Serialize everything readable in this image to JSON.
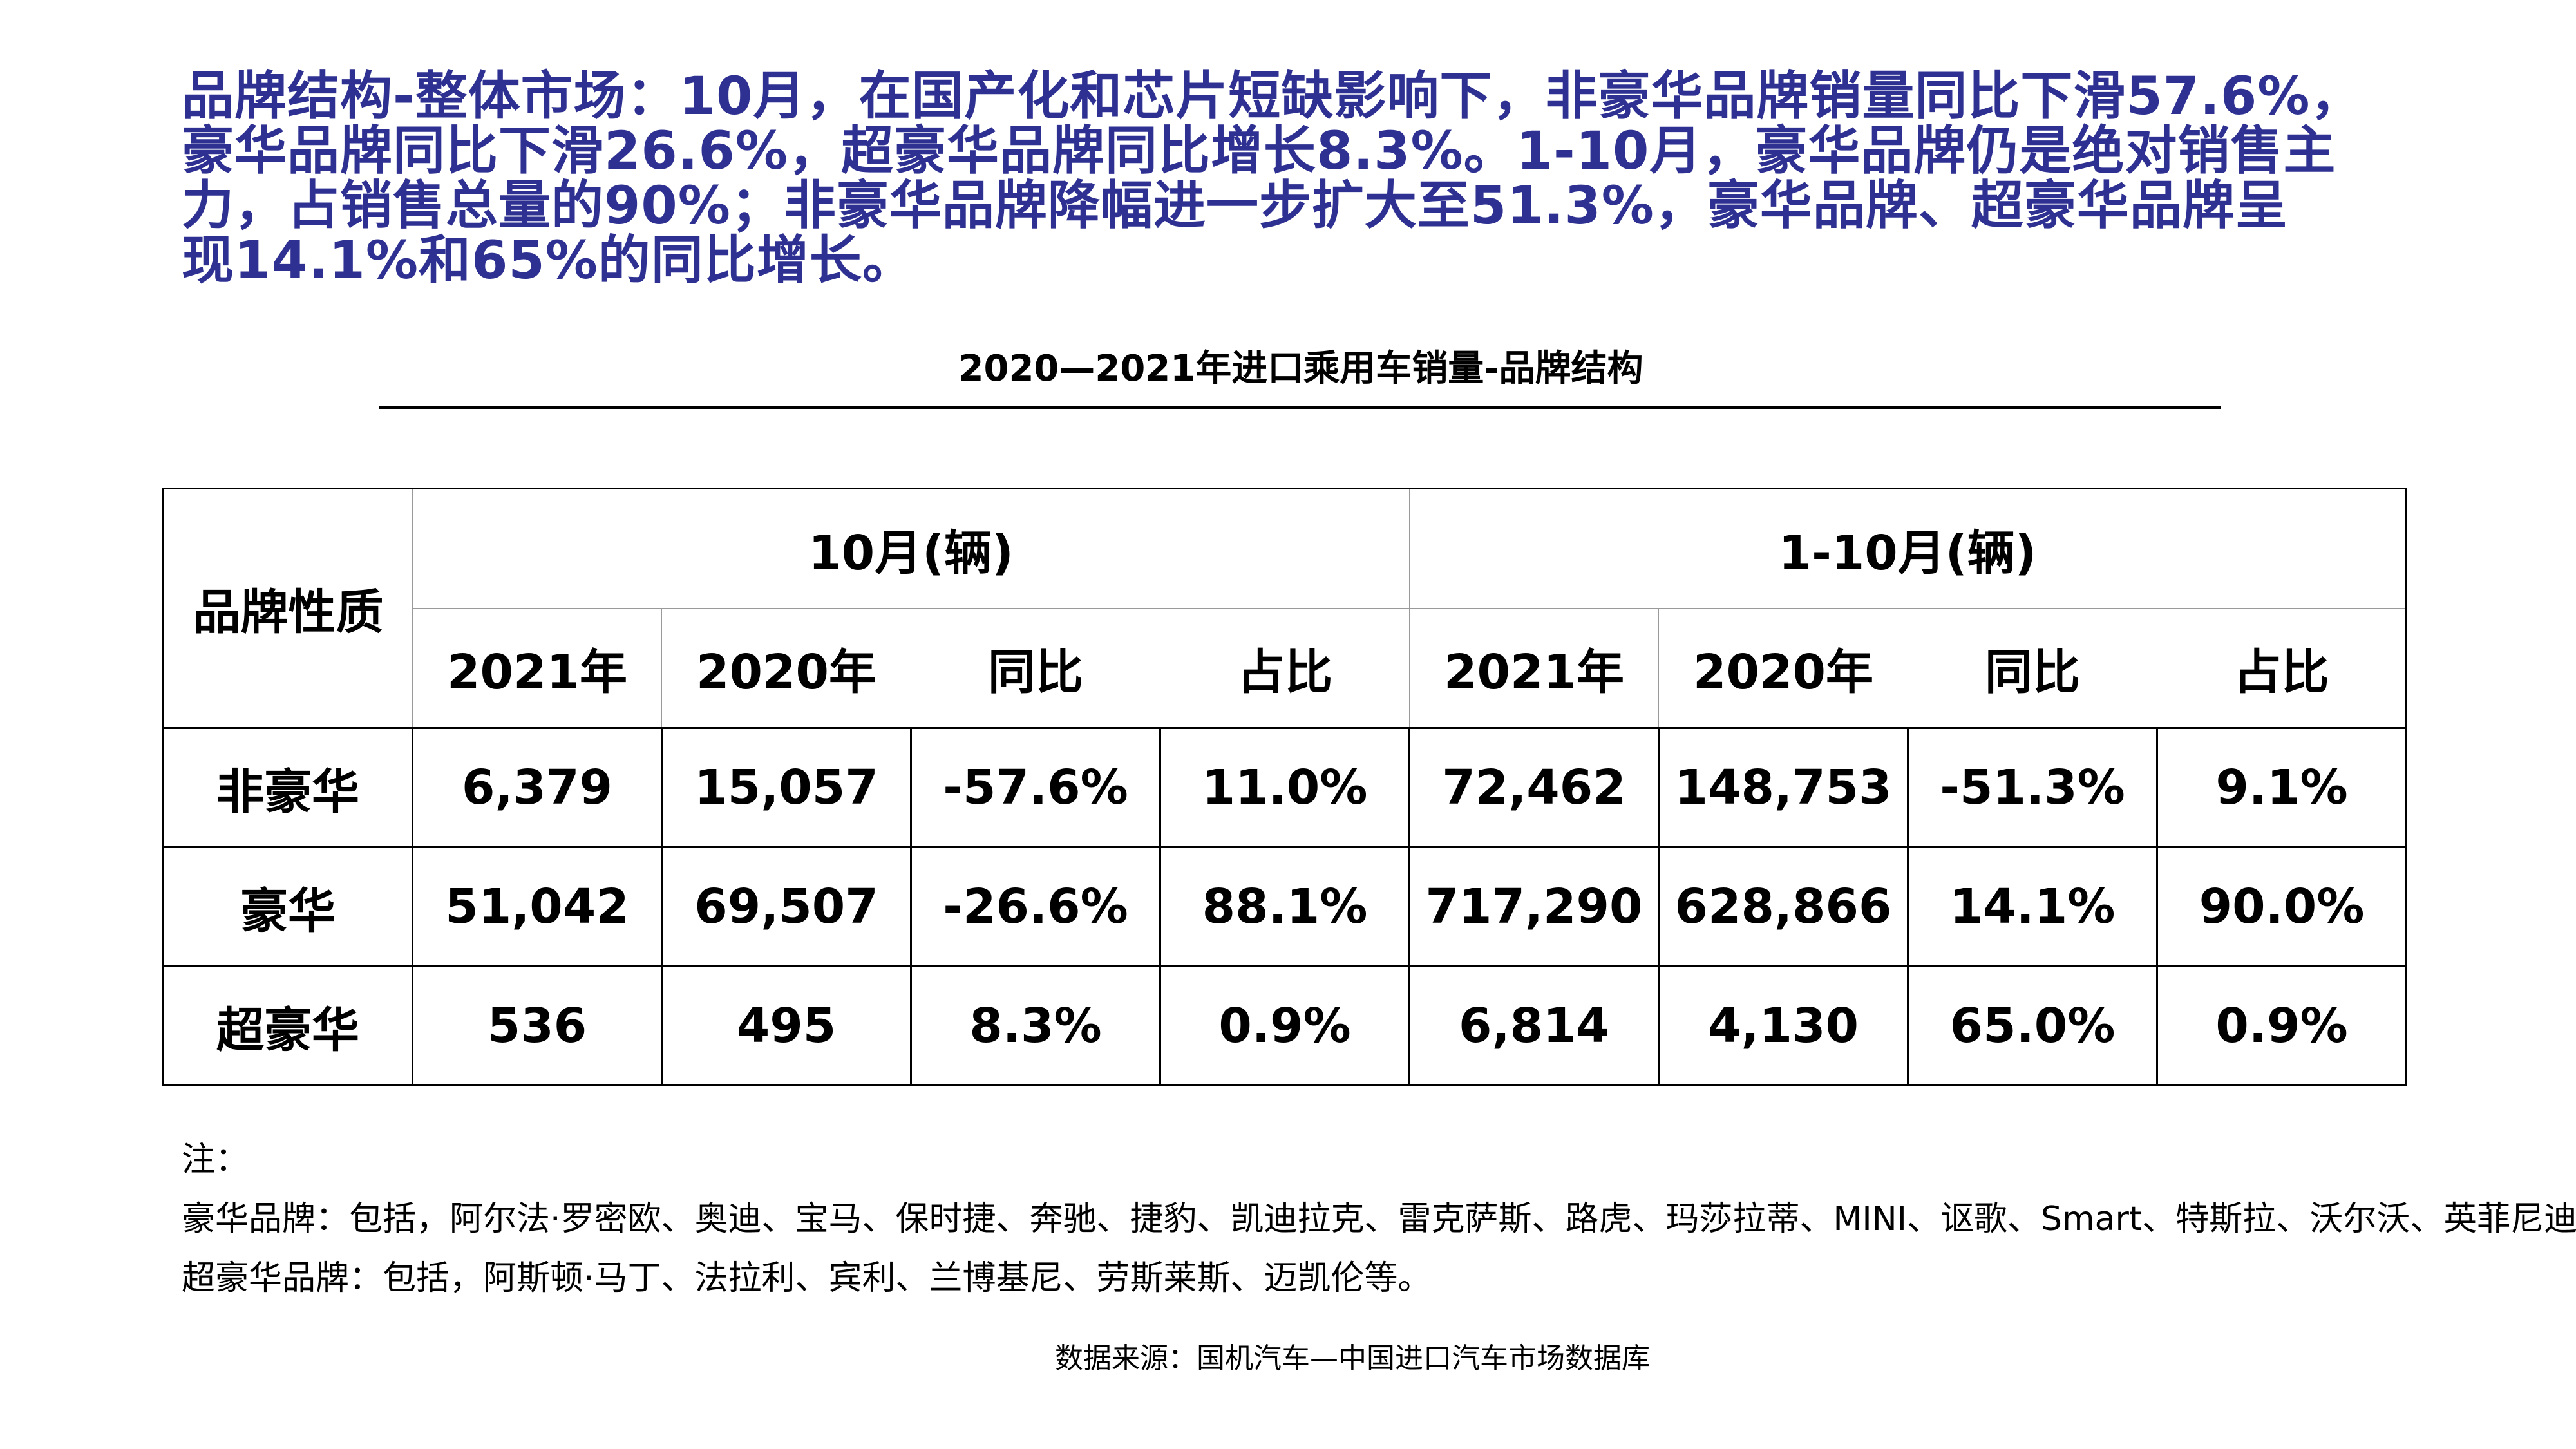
{
  "headline": {
    "lines": [
      "品牌结构-整体市场：10月，在国产化和芯片短缺影响下，非豪华品牌销量同比下滑57.6%，",
      "豪华品牌同比下滑26.6%，超豪华品牌同比增长8.3%。1-10月，豪华品牌仍是绝对销售主",
      "力，占销售总量的90%；非豪华品牌降幅进一步扩大至51.3%，豪华品牌、超豪华品牌呈",
      "现14.1%和65%的同比增长。"
    ]
  },
  "table_title": "2020—2021年进口乘用车销量-品牌结构",
  "table": {
    "corner_label": "品牌性质",
    "groups": [
      "10月(辆)",
      "1-10月(辆)"
    ],
    "subheaders": [
      "2021年",
      "2020年",
      "同比",
      "占比",
      "2021年",
      "2020年",
      "同比",
      "占比"
    ],
    "rows": [
      {
        "label": "非豪华",
        "cells": [
          "6,379",
          "15,057",
          "-57.6%",
          "11.0%",
          "72,462",
          "148,753",
          "-51.3%",
          "9.1%"
        ]
      },
      {
        "label": "豪华",
        "cells": [
          "51,042",
          "69,507",
          "-26.6%",
          "88.1%",
          "717,290",
          "628,866",
          "14.1%",
          "90.0%"
        ]
      },
      {
        "label": "超豪华",
        "cells": [
          "536",
          "495",
          "8.3%",
          "0.9%",
          "6,814",
          "4,130",
          "65.0%",
          "0.9%"
        ]
      }
    ]
  },
  "notes": {
    "heading": "注：",
    "luxury": "豪华品牌：包括，阿尔法·罗密欧、奥迪、宝马、保时捷、奔驰、捷豹、凯迪拉克、雷克萨斯、路虎、玛莎拉蒂、MINI、讴歌、Smart、特斯拉、沃尔沃、英菲尼迪等。",
    "super_luxury": "超豪华品牌：包括，阿斯顿·马丁、法拉利、宾利、兰博基尼、劳斯莱斯、迈凯伦等。"
  },
  "source": "数据来源：国机汽车—中国进口汽车市场数据库",
  "colors": {
    "headline": "#2e3192",
    "text": "#000000",
    "background": "#ffffff"
  }
}
